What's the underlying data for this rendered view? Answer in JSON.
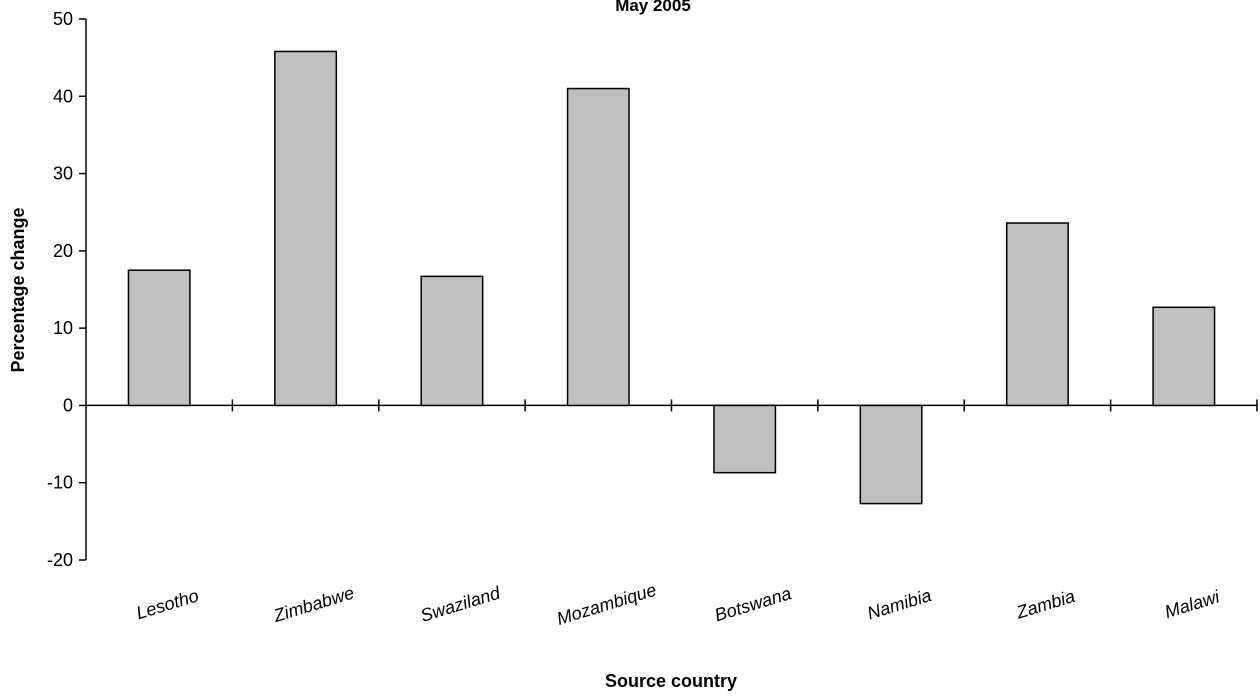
{
  "chart_data": {
    "type": "bar",
    "title": "May 2005",
    "xlabel": "Source country",
    "ylabel": "Percentage change",
    "ylim": [
      -20,
      50
    ],
    "yticks": [
      "50",
      "40",
      "30",
      "20",
      "10",
      "0",
      "-10",
      "-20"
    ],
    "categories": [
      "Lesotho",
      "Zimbabwe",
      "Swaziland",
      "Mozambique",
      "Botswana",
      "Namibia",
      "Zambia",
      "Malawi"
    ],
    "values": [
      17.5,
      45.8,
      16.7,
      41.0,
      -8.7,
      -12.7,
      23.6,
      12.7
    ],
    "grid": false,
    "legend": "none",
    "colors": {
      "bar_fill": "#c0c0c0",
      "bar_stroke": "#000000",
      "axis": "#000000"
    }
  }
}
